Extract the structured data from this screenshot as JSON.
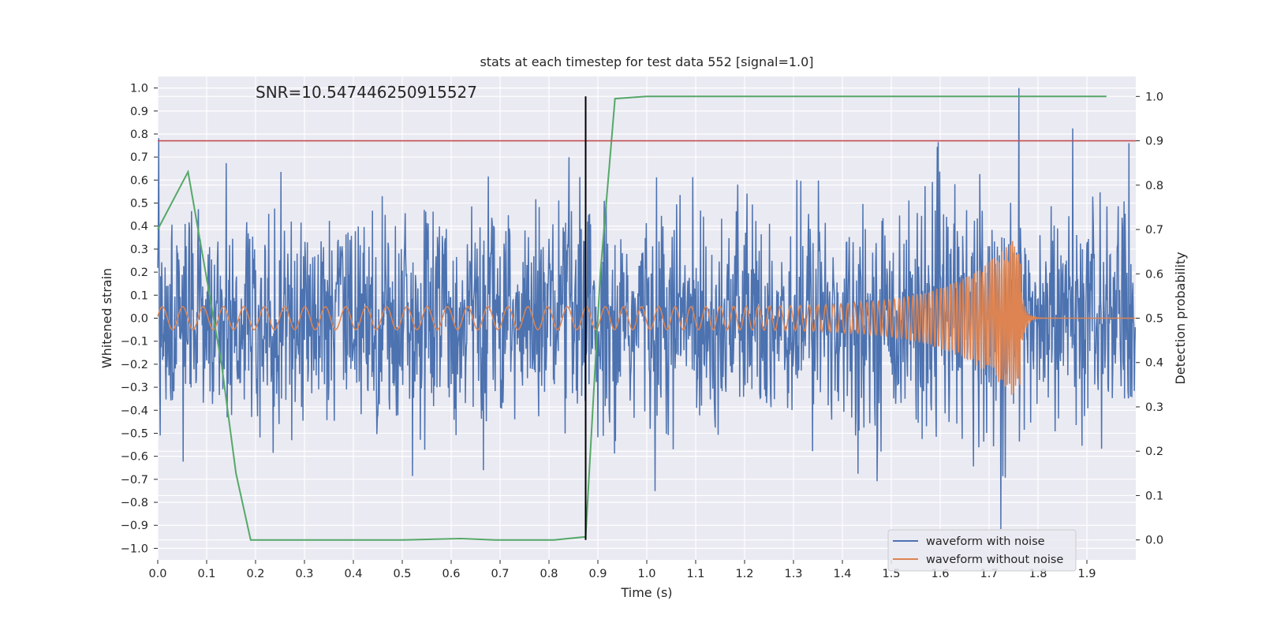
{
  "chart_data": {
    "type": "line",
    "title": "stats at each timestep for test data 552 [signal=1.0]",
    "annotation": "SNR=10.547446250915527",
    "xlabel": "Time (s)",
    "ylabel_left": "Whitened strain",
    "ylabel_right": "Detection probability",
    "xlim": [
      0.0,
      2.0
    ],
    "ylim_left": [
      -1.05,
      1.05
    ],
    "ylim_right": [
      -0.045,
      1.045
    ],
    "x_ticks": [
      "0.0",
      "0.1",
      "0.2",
      "0.3",
      "0.4",
      "0.5",
      "0.6",
      "0.7",
      "0.8",
      "0.9",
      "1.0",
      "1.1",
      "1.2",
      "1.3",
      "1.4",
      "1.5",
      "1.6",
      "1.7",
      "1.8",
      "1.9"
    ],
    "y_ticks_left": [
      "1.0",
      "0.9",
      "0.8",
      "0.7",
      "0.6",
      "0.5",
      "0.4",
      "0.3",
      "0.2",
      "0.1",
      "0.0",
      "−0.1",
      "−0.2",
      "−0.3",
      "−0.4",
      "−0.5",
      "−0.6",
      "−0.7",
      "−0.8",
      "−0.9",
      "−1.0"
    ],
    "y_ticks_right": [
      "1.0",
      "0.9",
      "0.8",
      "0.7",
      "0.6",
      "0.5",
      "0.4",
      "0.3",
      "0.2",
      "0.1",
      "0.0"
    ],
    "grid": true,
    "legend_position": "lower-right",
    "colors": {
      "background": "#eaeaf2",
      "grid": "#ffffff",
      "noisy": "#4c72b0",
      "clean": "#dd8452",
      "probability": "#55a868",
      "threshold": "#c44e52",
      "marker": "#000000"
    },
    "series": [
      {
        "name": "waveform with noise",
        "description_stats": {
          "amplitude_typical": 0.45,
          "max": 1.0,
          "min": -0.93
        }
      },
      {
        "name": "waveform without noise",
        "chirp": {
          "start_amp": 0.05,
          "peak_amp": 0.38,
          "merger_time": 1.765,
          "start_freq_hz": 24,
          "end_freq_hz": 250
        }
      },
      {
        "name": "",
        "axis": "right",
        "x": [
          0.0,
          0.062,
          0.13,
          0.16,
          0.19,
          0.3,
          0.5,
          0.62,
          0.69,
          0.81,
          0.875,
          0.905,
          0.935,
          1.0,
          1.5,
          1.94
        ],
        "y": [
          0.7,
          0.83,
          0.4,
          0.15,
          0.0,
          0.0,
          0.0,
          0.003,
          0.0,
          0.0,
          0.007,
          0.6,
          0.995,
          1.0,
          1.0,
          1.0
        ]
      }
    ],
    "threshold_right": 0.9,
    "marker_x": 0.875
  },
  "legend": {
    "items": [
      "waveform with noise",
      "waveform without noise"
    ]
  }
}
